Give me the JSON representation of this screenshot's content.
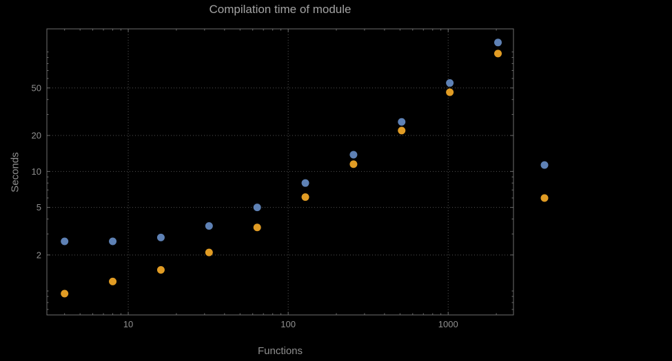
{
  "chart_data": {
    "type": "scatter",
    "title": "Compilation time of module",
    "xlabel": "Functions",
    "ylabel": "Seconds",
    "x_scale": "log",
    "y_scale": "log",
    "x": [
      4,
      8,
      16,
      32,
      64,
      128,
      256,
      512,
      1024,
      2048
    ],
    "series": [
      {
        "label": "",
        "color": "#5e81b5",
        "values": [
          2.6,
          2.6,
          2.8,
          3.5,
          5.0,
          8.0,
          13.8,
          26,
          55,
          120
        ]
      },
      {
        "label": "",
        "color": "#e19c24",
        "values": [
          0.95,
          1.2,
          1.5,
          2.1,
          3.4,
          6.1,
          11.5,
          22,
          46,
          97
        ]
      }
    ],
    "x_ticks": [
      10,
      100,
      1000
    ],
    "y_ticks": [
      2,
      5,
      10,
      20,
      50
    ],
    "xlim": [
      3.1,
      2560
    ],
    "ylim": [
      0.63,
      156
    ],
    "grid": true,
    "grid_style": "dotted",
    "legend_position": "right",
    "colors": {
      "background": "#000000",
      "frame": "#6f6f6f",
      "grid": "#565656",
      "labels": "#909090",
      "title": "#a3a3a3"
    }
  }
}
